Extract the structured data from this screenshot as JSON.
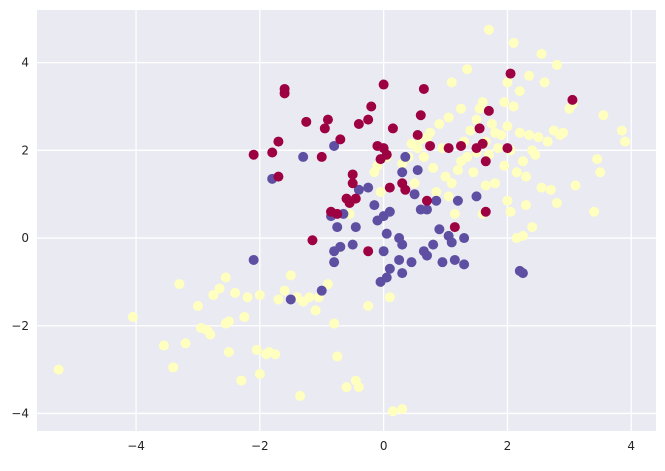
{
  "chart_data": {
    "type": "scatter",
    "title": "",
    "xlabel": "",
    "ylabel": "",
    "xlim": [
      -5.6,
      4.4
    ],
    "ylim": [
      -4.4,
      5.2
    ],
    "xticks": [
      -4,
      -2,
      0,
      2,
      4
    ],
    "yticks": [
      -4,
      -2,
      0,
      2,
      4
    ],
    "x_tick_labels": [
      "−4",
      "−2",
      "0",
      "2",
      "4"
    ],
    "y_tick_labels": [
      "−4",
      "−2",
      "0",
      "2",
      "4"
    ],
    "grid": true,
    "legend": "none",
    "background_color": "#eaeaf2",
    "grid_color": "#ffffff",
    "series": [
      {
        "color": "#ffffbf",
        "points": [
          [
            -5.25,
            -3.0
          ],
          [
            -4.05,
            -1.8
          ],
          [
            -3.55,
            -2.45
          ],
          [
            -3.4,
            -2.95
          ],
          [
            -3.3,
            -1.05
          ],
          [
            -3.2,
            -2.4
          ],
          [
            -3.0,
            -1.55
          ],
          [
            -2.95,
            -2.05
          ],
          [
            -2.85,
            -2.1
          ],
          [
            -2.8,
            -2.2
          ],
          [
            -2.75,
            -1.3
          ],
          [
            -2.65,
            -1.15
          ],
          [
            -2.55,
            -0.9
          ],
          [
            -2.55,
            -1.95
          ],
          [
            -2.5,
            -2.6
          ],
          [
            -2.5,
            -1.9
          ],
          [
            -2.4,
            -1.25
          ],
          [
            -2.3,
            -3.25
          ],
          [
            -2.25,
            -1.8
          ],
          [
            -2.2,
            -1.35
          ],
          [
            -2.05,
            -2.55
          ],
          [
            -2.0,
            -3.1
          ],
          [
            -2.0,
            -1.3
          ],
          [
            -1.9,
            -2.65
          ],
          [
            -1.85,
            -2.6
          ],
          [
            -1.75,
            -2.65
          ],
          [
            -1.7,
            -1.4
          ],
          [
            -1.6,
            -1.2
          ],
          [
            -1.5,
            -0.85
          ],
          [
            -1.4,
            -1.35
          ],
          [
            -1.35,
            -3.6
          ],
          [
            -1.3,
            -1.45
          ],
          [
            -1.2,
            -1.35
          ],
          [
            -1.1,
            -1.65
          ],
          [
            -1.05,
            -1.35
          ],
          [
            -0.9,
            -1.05
          ],
          [
            -0.8,
            -1.95
          ],
          [
            -0.75,
            -2.7
          ],
          [
            -0.6,
            -3.4
          ],
          [
            -0.55,
            0.55
          ],
          [
            -0.45,
            -3.25
          ],
          [
            -0.4,
            -3.4
          ],
          [
            -0.25,
            -1.55
          ],
          [
            -0.15,
            1.5
          ],
          [
            -0.1,
            1.65
          ],
          [
            -0.05,
            1.05
          ],
          [
            0.05,
            1.85
          ],
          [
            0.1,
            -1.35
          ],
          [
            0.15,
            -3.95
          ],
          [
            0.3,
            -3.9
          ],
          [
            0.3,
            1.7
          ],
          [
            0.4,
            1.85
          ],
          [
            0.45,
            2.15
          ],
          [
            0.5,
            1.25
          ],
          [
            0.55,
            2.05
          ],
          [
            0.6,
            2.25
          ],
          [
            0.65,
            1.85
          ],
          [
            0.7,
            2.3
          ],
          [
            0.75,
            2.4
          ],
          [
            0.8,
            1.6
          ],
          [
            0.85,
            1.05
          ],
          [
            0.9,
            2.6
          ],
          [
            0.95,
            2.05
          ],
          [
            1.0,
            1.4
          ],
          [
            1.05,
            0.95
          ],
          [
            1.05,
            2.75
          ],
          [
            1.1,
            1.25
          ],
          [
            1.1,
            3.55
          ],
          [
            1.15,
            0.55
          ],
          [
            1.2,
            1.55
          ],
          [
            1.25,
            1.75
          ],
          [
            1.25,
            2.95
          ],
          [
            1.3,
            2.2
          ],
          [
            1.35,
            1.85
          ],
          [
            1.35,
            3.85
          ],
          [
            1.4,
            2.45
          ],
          [
            1.45,
            1.5
          ],
          [
            1.5,
            1.95
          ],
          [
            1.5,
            2.7
          ],
          [
            1.55,
            2.95
          ],
          [
            1.6,
            3.1
          ],
          [
            1.6,
            0.55
          ],
          [
            1.65,
            2.2
          ],
          [
            1.65,
            1.2
          ],
          [
            1.7,
            1.9
          ],
          [
            1.7,
            4.75
          ],
          [
            1.75,
            2.6
          ],
          [
            1.8,
            2.4
          ],
          [
            1.8,
            1.25
          ],
          [
            1.85,
            2.05
          ],
          [
            1.9,
            2.35
          ],
          [
            1.95,
            3.1
          ],
          [
            1.95,
            1.65
          ],
          [
            2.0,
            0.85
          ],
          [
            2.0,
            2.55
          ],
          [
            2.0,
            3.55
          ],
          [
            2.05,
            2.0
          ],
          [
            2.05,
            0.6
          ],
          [
            2.1,
            3.0
          ],
          [
            2.1,
            4.45
          ],
          [
            2.15,
            0.0
          ],
          [
            2.15,
            1.5
          ],
          [
            2.2,
            2.4
          ],
          [
            2.2,
            3.35
          ],
          [
            2.25,
            1.75
          ],
          [
            2.25,
            0.05
          ],
          [
            2.3,
            0.75
          ],
          [
            2.3,
            1.4
          ],
          [
            2.35,
            2.35
          ],
          [
            2.35,
            3.7
          ],
          [
            2.4,
            2.0
          ],
          [
            2.4,
            0.25
          ],
          [
            2.45,
            1.9
          ],
          [
            2.5,
            2.3
          ],
          [
            2.55,
            4.2
          ],
          [
            2.55,
            1.15
          ],
          [
            2.6,
            3.55
          ],
          [
            2.65,
            2.2
          ],
          [
            2.7,
            1.1
          ],
          [
            2.75,
            2.45
          ],
          [
            2.8,
            3.95
          ],
          [
            2.8,
            0.8
          ],
          [
            2.85,
            2.35
          ],
          [
            2.9,
            2.4
          ],
          [
            3.0,
            2.95
          ],
          [
            3.05,
            3.05
          ],
          [
            3.1,
            1.2
          ],
          [
            3.4,
            0.6
          ],
          [
            3.45,
            1.8
          ],
          [
            3.5,
            1.5
          ],
          [
            3.55,
            2.8
          ],
          [
            3.85,
            2.45
          ],
          [
            3.9,
            2.2
          ]
        ]
      },
      {
        "color": "#5e4fa2",
        "points": [
          [
            -2.1,
            -0.5
          ],
          [
            -1.8,
            1.35
          ],
          [
            -1.5,
            -1.4
          ],
          [
            -1.3,
            1.85
          ],
          [
            -1.0,
            -1.2
          ],
          [
            -0.85,
            0.5
          ],
          [
            -0.8,
            -0.55
          ],
          [
            -0.8,
            -0.3
          ],
          [
            -0.8,
            2.1
          ],
          [
            -0.75,
            0.25
          ],
          [
            -0.7,
            -0.2
          ],
          [
            -0.65,
            0.55
          ],
          [
            -0.5,
            -0.15
          ],
          [
            -0.45,
            0.25
          ],
          [
            -0.4,
            1.1
          ],
          [
            -0.25,
            1.15
          ],
          [
            -0.15,
            0.75
          ],
          [
            -0.1,
            0.4
          ],
          [
            -0.05,
            -1.0
          ],
          [
            0.0,
            -0.3
          ],
          [
            0.0,
            0.5
          ],
          [
            0.05,
            -0.9
          ],
          [
            0.05,
            0.1
          ],
          [
            0.1,
            -0.7
          ],
          [
            0.1,
            0.6
          ],
          [
            0.25,
            0.0
          ],
          [
            0.25,
            -0.5
          ],
          [
            0.3,
            -0.15
          ],
          [
            0.3,
            1.5
          ],
          [
            0.3,
            -0.8
          ],
          [
            0.35,
            1.85
          ],
          [
            0.45,
            -0.55
          ],
          [
            0.5,
            1.0
          ],
          [
            0.55,
            1.55
          ],
          [
            0.6,
            0.65
          ],
          [
            0.65,
            -0.3
          ],
          [
            0.7,
            -0.4
          ],
          [
            0.7,
            0.65
          ],
          [
            0.8,
            -0.15
          ],
          [
            0.85,
            0.85
          ],
          [
            0.9,
            0.2
          ],
          [
            0.95,
            -0.55
          ],
          [
            1.05,
            0.05
          ],
          [
            1.1,
            -0.1
          ],
          [
            1.15,
            -0.5
          ],
          [
            1.2,
            0.85
          ],
          [
            1.3,
            -0.6
          ],
          [
            1.3,
            0.0
          ],
          [
            1.5,
            0.95
          ],
          [
            2.2,
            -0.75
          ],
          [
            2.25,
            -0.8
          ]
        ]
      },
      {
        "color": "#9e0142",
        "points": [
          [
            -2.1,
            1.9
          ],
          [
            -1.8,
            1.95
          ],
          [
            -1.7,
            1.4
          ],
          [
            -1.7,
            2.2
          ],
          [
            -1.6,
            3.3
          ],
          [
            -1.6,
            3.4
          ],
          [
            -1.25,
            2.65
          ],
          [
            -1.15,
            -0.05
          ],
          [
            -1.0,
            1.85
          ],
          [
            -0.95,
            2.5
          ],
          [
            -0.9,
            2.7
          ],
          [
            -0.85,
            0.6
          ],
          [
            -0.75,
            0.55
          ],
          [
            -0.7,
            2.25
          ],
          [
            -0.6,
            0.9
          ],
          [
            -0.55,
            0.8
          ],
          [
            -0.5,
            1.25
          ],
          [
            -0.5,
            1.45
          ],
          [
            -0.45,
            0.9
          ],
          [
            -0.4,
            2.6
          ],
          [
            -0.25,
            2.7
          ],
          [
            -0.25,
            -0.3
          ],
          [
            -0.2,
            3.0
          ],
          [
            -0.1,
            2.1
          ],
          [
            -0.05,
            1.8
          ],
          [
            0.0,
            3.5
          ],
          [
            0.0,
            2.05
          ],
          [
            0.05,
            1.9
          ],
          [
            0.1,
            1.15
          ],
          [
            0.15,
            2.5
          ],
          [
            0.3,
            1.25
          ],
          [
            0.35,
            1.1
          ],
          [
            0.55,
            2.35
          ],
          [
            0.6,
            2.8
          ],
          [
            0.65,
            3.4
          ],
          [
            0.7,
            0.85
          ],
          [
            0.75,
            2.1
          ],
          [
            1.05,
            2.05
          ],
          [
            1.15,
            0.25
          ],
          [
            1.25,
            2.1
          ],
          [
            1.5,
            2.05
          ],
          [
            1.55,
            2.5
          ],
          [
            1.6,
            2.15
          ],
          [
            1.65,
            0.6
          ],
          [
            1.65,
            1.75
          ],
          [
            1.7,
            2.9
          ],
          [
            2.0,
            2.05
          ],
          [
            2.05,
            3.75
          ],
          [
            3.05,
            3.15
          ]
        ]
      }
    ]
  }
}
